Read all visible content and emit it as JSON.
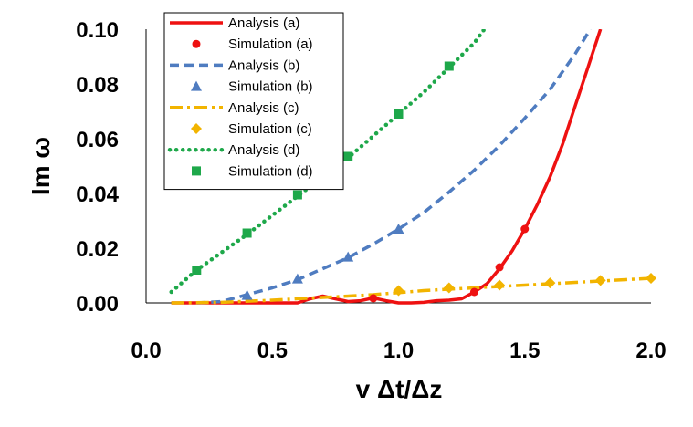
{
  "chart_data": {
    "type": "line",
    "title": "",
    "xlabel": "v Δt/Δz",
    "ylabel": "Im ω",
    "xlim": [
      0.0,
      2.0
    ],
    "ylim": [
      0.0,
      0.1
    ],
    "xticks": [
      "0.0",
      "0.5",
      "1.0",
      "1.5",
      "2.0"
    ],
    "yticks": [
      "0.00",
      "0.02",
      "0.04",
      "0.06",
      "0.08",
      "0.10"
    ],
    "grid": false,
    "legend_position": "top-left",
    "series": [
      {
        "name": "Analysis (a)",
        "kind": "line",
        "style": "solid",
        "color": "#ee1111",
        "x": [
          0.1,
          0.6,
          0.65,
          0.7,
          0.75,
          0.8,
          0.85,
          0.9,
          0.95,
          1.0,
          1.05,
          1.1,
          1.15,
          1.2,
          1.25,
          1.3,
          1.35,
          1.4,
          1.45,
          1.5,
          1.55,
          1.6,
          1.65,
          1.7,
          1.75,
          1.8
        ],
        "y": [
          0.0,
          0.0,
          0.0015,
          0.0025,
          0.0015,
          0.0005,
          0.0008,
          0.0018,
          0.0008,
          0.0,
          0.0,
          0.0002,
          0.0008,
          0.001,
          0.0015,
          0.004,
          0.007,
          0.0125,
          0.019,
          0.027,
          0.036,
          0.046,
          0.058,
          0.072,
          0.086,
          0.1
        ]
      },
      {
        "name": "Simulation (a)",
        "kind": "markers",
        "marker": "circle",
        "color": "#ee1111",
        "x": [
          0.9,
          1.3,
          1.4,
          1.5
        ],
        "y": [
          0.0017,
          0.004,
          0.013,
          0.027
        ]
      },
      {
        "name": "Analysis (b)",
        "kind": "line",
        "style": "dashed",
        "color": "#4f7cc0",
        "x": [
          0.2,
          0.3,
          0.4,
          0.5,
          0.6,
          0.7,
          0.8,
          0.9,
          1.0,
          1.1,
          1.2,
          1.3,
          1.4,
          1.5,
          1.6,
          1.7,
          1.76
        ],
        "y": [
          0.0,
          0.0005,
          0.003,
          0.0055,
          0.0085,
          0.0125,
          0.0165,
          0.0215,
          0.027,
          0.033,
          0.0405,
          0.0485,
          0.0575,
          0.0675,
          0.078,
          0.091,
          0.1
        ]
      },
      {
        "name": "Simulation (b)",
        "kind": "markers",
        "marker": "triangle",
        "color": "#4f7cc0",
        "x": [
          0.4,
          0.6,
          0.8,
          1.0
        ],
        "y": [
          0.0028,
          0.0088,
          0.0168,
          0.027
        ]
      },
      {
        "name": "Analysis (c)",
        "kind": "line",
        "style": "dashdot",
        "color": "#f2b400",
        "x": [
          0.1,
          0.3,
          0.5,
          0.7,
          0.9,
          1.1,
          1.3,
          1.5,
          1.7,
          1.9,
          2.0
        ],
        "y": [
          0.0,
          0.0002,
          0.001,
          0.002,
          0.003,
          0.0045,
          0.0055,
          0.0065,
          0.0075,
          0.0085,
          0.009
        ]
      },
      {
        "name": "Simulation (c)",
        "kind": "markers",
        "marker": "diamond",
        "color": "#f2b400",
        "x": [
          1.0,
          1.2,
          1.4,
          1.6,
          1.8,
          2.0
        ],
        "y": [
          0.0045,
          0.0055,
          0.0065,
          0.0073,
          0.0082,
          0.009
        ]
      },
      {
        "name": "Analysis (d)",
        "kind": "line",
        "style": "dotted",
        "color": "#1ea84a",
        "x": [
          0.1,
          0.2,
          0.3,
          0.4,
          0.5,
          0.6,
          0.7,
          0.8,
          0.9,
          1.0,
          1.1,
          1.2,
          1.3,
          1.34
        ],
        "y": [
          0.004,
          0.012,
          0.0185,
          0.025,
          0.032,
          0.039,
          0.046,
          0.053,
          0.061,
          0.069,
          0.077,
          0.086,
          0.095,
          0.1
        ]
      },
      {
        "name": "Simulation (d)",
        "kind": "markers",
        "marker": "square",
        "color": "#1ea84a",
        "x": [
          0.2,
          0.4,
          0.6,
          0.8,
          1.0,
          1.2
        ],
        "y": [
          0.012,
          0.0255,
          0.0395,
          0.0535,
          0.069,
          0.0865
        ]
      }
    ]
  }
}
